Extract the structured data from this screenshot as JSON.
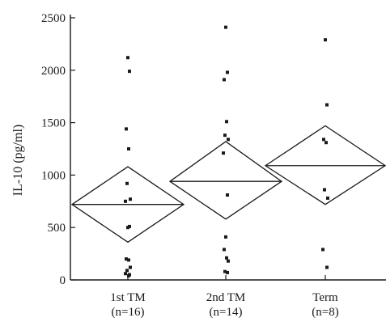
{
  "chart_data": {
    "type": "scatter",
    "title": "",
    "xlabel": "",
    "ylabel": "IL-10 (pg/ml)",
    "ylim": [
      0,
      2500
    ],
    "yticks": [
      0,
      500,
      1000,
      1500,
      2000,
      2500
    ],
    "grid": false,
    "categories": [
      {
        "label": "1st TM",
        "n_label": "(n=16)"
      },
      {
        "label": "2nd TM",
        "n_label": "(n=14)"
      },
      {
        "label": "Term",
        "n_label": "(n=8)"
      }
    ],
    "series": [
      {
        "category": "1st TM",
        "points": [
          2120,
          1990,
          1440,
          1250,
          920,
          770,
          750,
          510,
          500,
          200,
          190,
          120,
          90,
          50,
          60,
          40
        ],
        "mean": 720,
        "diamond_low": 360,
        "diamond_high": 1080
      },
      {
        "category": "2nd TM",
        "points": [
          2410,
          1980,
          1910,
          1510,
          1380,
          1340,
          1210,
          810,
          410,
          290,
          210,
          180,
          80,
          70
        ],
        "mean": 940,
        "diamond_low": 580,
        "diamond_high": 1320
      },
      {
        "category": "Term",
        "points": [
          2290,
          1670,
          1340,
          1310,
          860,
          780,
          290,
          120
        ],
        "mean": 1090,
        "diamond_low": 720,
        "diamond_high": 1470
      }
    ],
    "colors": {
      "ink": "#1a1a1a",
      "background": "#ffffff"
    }
  }
}
